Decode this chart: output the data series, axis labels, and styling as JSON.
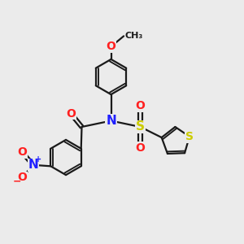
{
  "bg_color": "#ebebeb",
  "bond_color": "#1a1a1a",
  "bond_width": 1.6,
  "dbo": 0.055,
  "N_color": "#2020ff",
  "O_color": "#ff2020",
  "S_color": "#cccc00",
  "S_thio_color": "#cccc00",
  "font_size": 10,
  "fig_size": [
    3.0,
    3.0
  ],
  "dpi": 100,
  "xlim": [
    0,
    10
  ],
  "ylim": [
    0,
    10
  ]
}
